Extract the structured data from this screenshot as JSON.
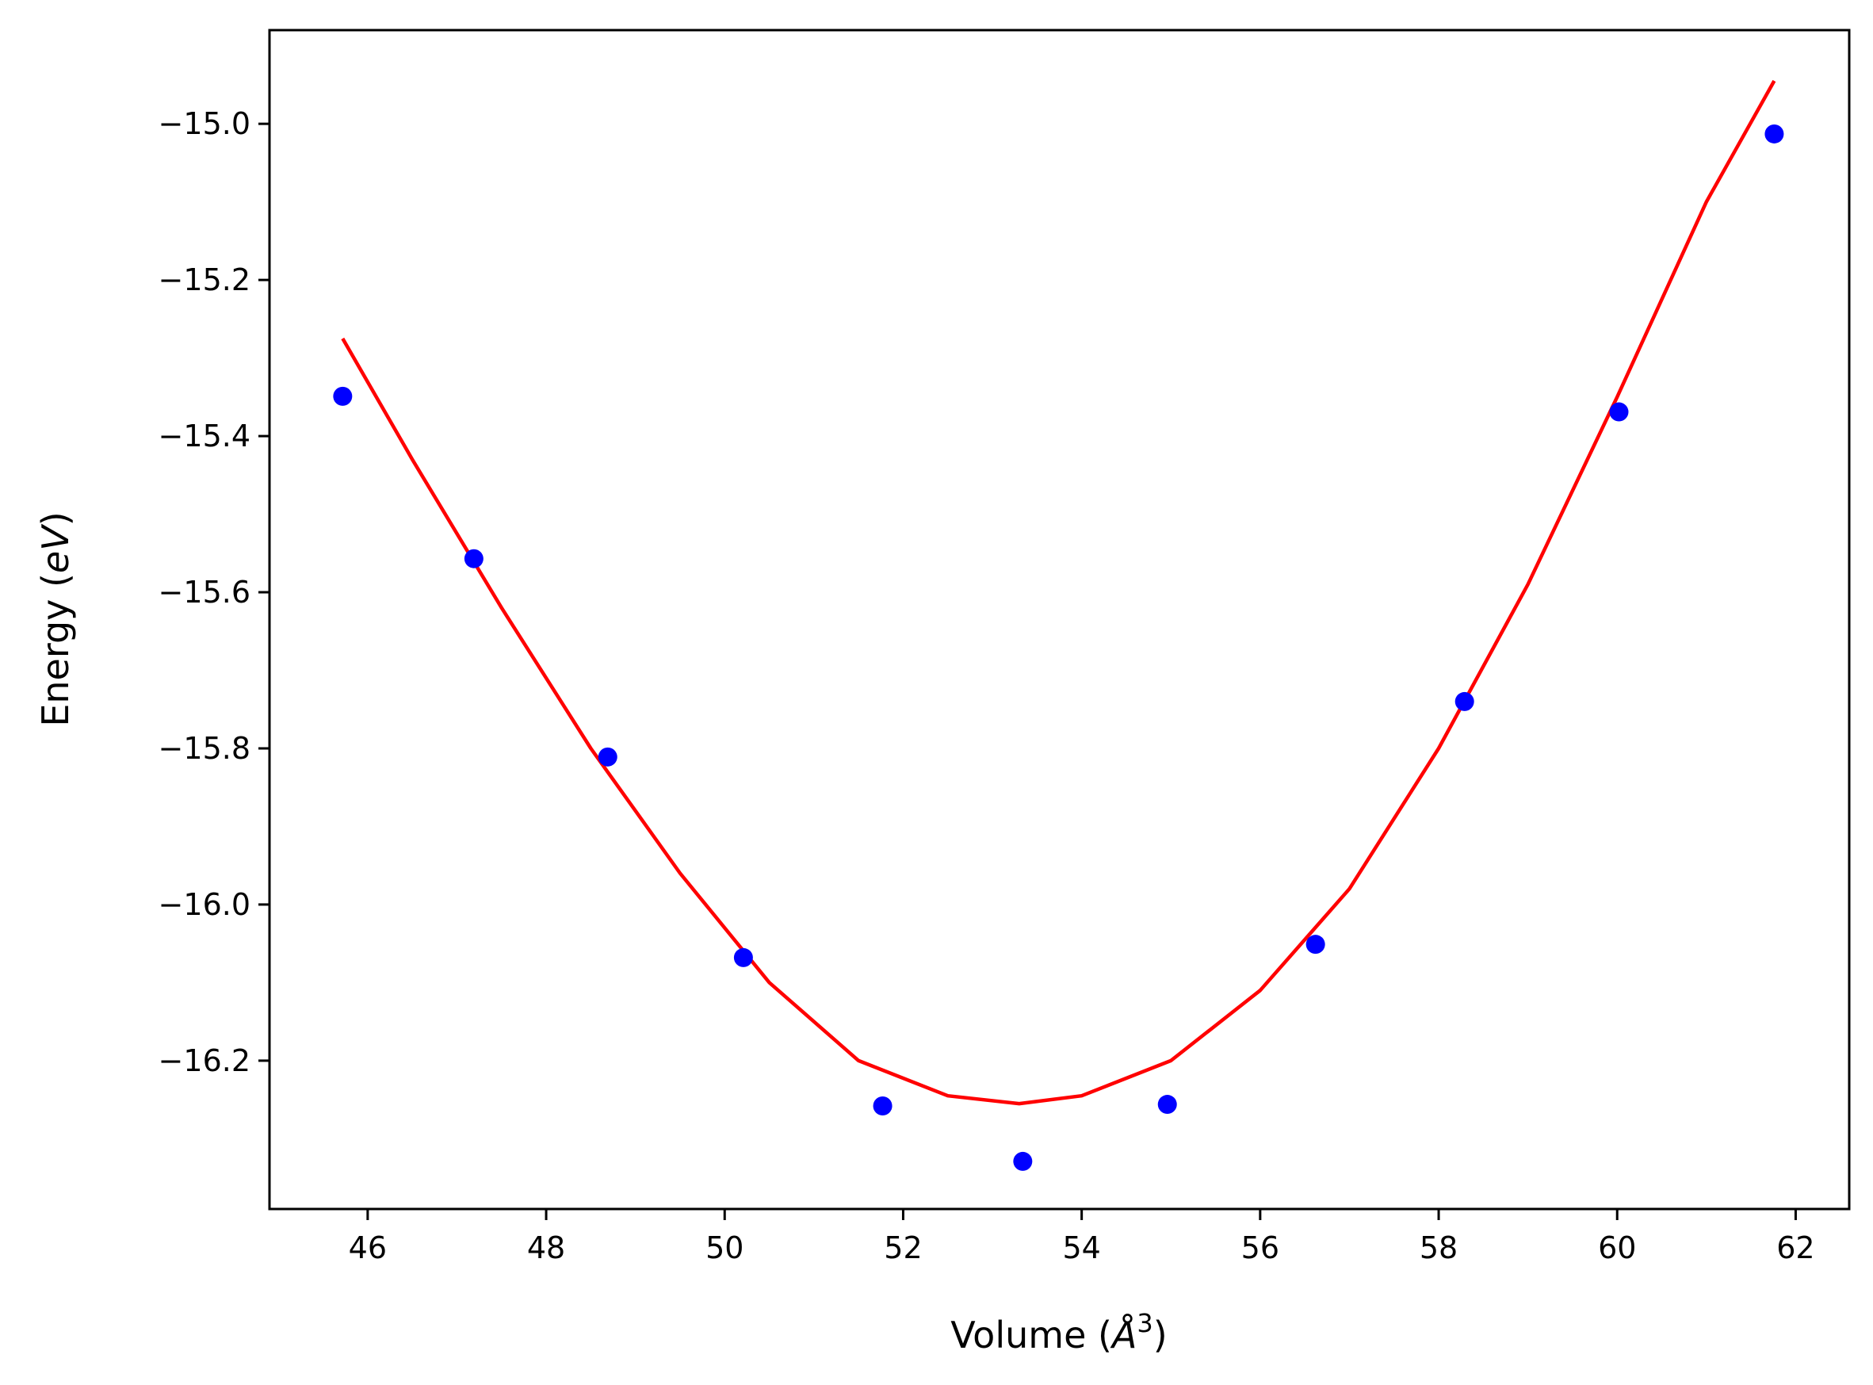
{
  "chart_data": {
    "type": "scatter",
    "xlabel": {
      "text": "Volume (",
      "italic": "Å",
      "sup": "3",
      "tail": ")"
    },
    "ylabel": {
      "text": "Energy (",
      "italic": "eV",
      "tail": ")"
    },
    "xlim": [
      44.9,
      62.6
    ],
    "ylim": [
      -16.39,
      -14.88
    ],
    "xticks": [
      46,
      48,
      50,
      52,
      54,
      56,
      58,
      60,
      62
    ],
    "xtick_labels": [
      "46",
      "48",
      "50",
      "52",
      "54",
      "56",
      "58",
      "60",
      "62"
    ],
    "yticks": [
      -15.0,
      -15.2,
      -15.4,
      -15.6,
      -15.8,
      -16.0,
      -16.2
    ],
    "ytick_labels": [
      "−15.0",
      "−15.2",
      "−15.4",
      "−15.6",
      "−15.8",
      "−16.0",
      "−16.2"
    ],
    "grid": false,
    "series": [
      {
        "kind": "points",
        "color": "#0000ff",
        "x": [
          45.72,
          47.19,
          48.69,
          50.21,
          51.77,
          53.34,
          54.96,
          56.62,
          58.29,
          60.02,
          61.76
        ],
        "y": [
          -15.349,
          -15.557,
          -15.811,
          -16.068,
          -16.258,
          -16.329,
          -16.256,
          -16.051,
          -15.74,
          -15.369,
          -15.013
        ]
      },
      {
        "kind": "fit-curve",
        "color": "#ff0000",
        "x": [
          45.72,
          46.5,
          47.5,
          48.5,
          49.5,
          50.5,
          51.5,
          52.5,
          53.3,
          54.0,
          55.0,
          56.0,
          57.0,
          58.0,
          59.0,
          60.0,
          61.0,
          61.76
        ],
        "y": [
          -15.275,
          -15.43,
          -15.62,
          -15.8,
          -15.96,
          -16.1,
          -16.2,
          -16.245,
          -16.255,
          -16.245,
          -16.2,
          -16.11,
          -15.98,
          -15.8,
          -15.59,
          -15.35,
          -15.1,
          -14.945
        ]
      }
    ]
  }
}
